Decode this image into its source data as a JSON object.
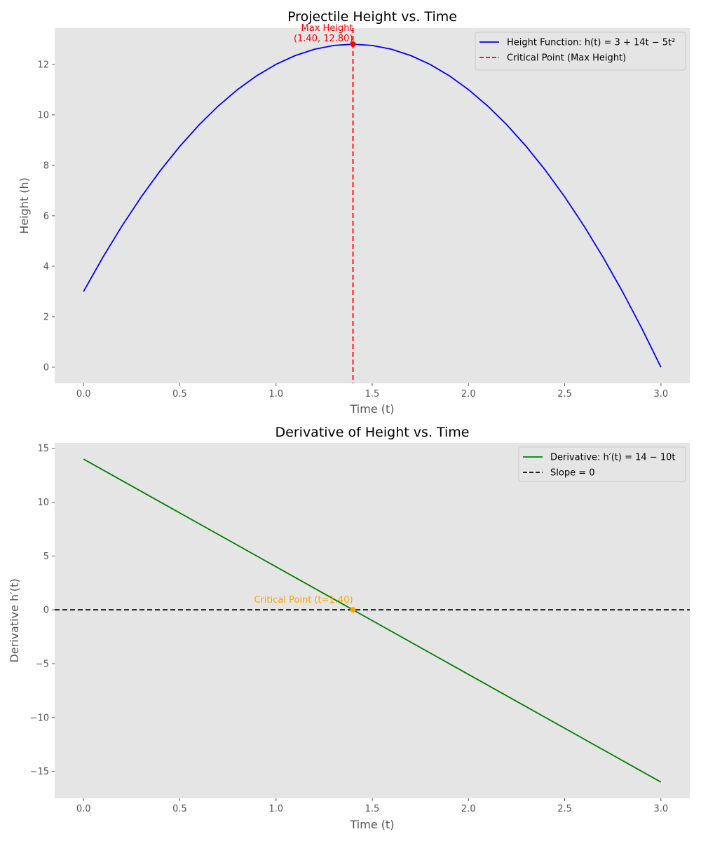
{
  "chart_data": [
    {
      "type": "line",
      "title": "Projectile Height vs. Time",
      "xlabel": "Time (t)",
      "ylabel": "Height (h)",
      "xlim": [
        -0.15,
        3.15
      ],
      "ylim": [
        -0.64,
        13.44
      ],
      "xticks": [
        0.0,
        0.5,
        1.0,
        1.5,
        2.0,
        2.5,
        3.0
      ],
      "xtick_labels": [
        "0.0",
        "0.5",
        "1.0",
        "1.5",
        "2.0",
        "2.5",
        "3.0"
      ],
      "yticks": [
        0,
        2,
        4,
        6,
        8,
        10,
        12
      ],
      "ytick_labels": [
        "0",
        "2",
        "4",
        "6",
        "8",
        "10",
        "12"
      ],
      "grid": false,
      "legend_position": "top-right",
      "background": "#e5e5e5",
      "series": [
        {
          "name": "Height Function: h(t) = 3 + 14t − 5t²",
          "color": "#0000ff",
          "style": "solid",
          "x": [
            0.0,
            0.1,
            0.2,
            0.3,
            0.4,
            0.5,
            0.6,
            0.7,
            0.8,
            0.9,
            1.0,
            1.1,
            1.2,
            1.3,
            1.4,
            1.5,
            1.6,
            1.7,
            1.8,
            1.9,
            2.0,
            2.1,
            2.2,
            2.3,
            2.4,
            2.5,
            2.6,
            2.7,
            2.8,
            2.9,
            3.0
          ],
          "y": [
            3.0,
            4.35,
            5.6,
            6.75,
            7.8,
            8.75,
            9.6,
            10.35,
            11.0,
            11.55,
            12.0,
            12.35,
            12.6,
            12.75,
            12.8,
            12.75,
            12.6,
            12.35,
            12.0,
            11.55,
            11.0,
            10.35,
            9.6,
            8.75,
            7.8,
            6.75,
            5.6,
            4.35,
            3.0,
            1.55,
            0.0
          ]
        },
        {
          "name": "Critical Point (Max Height)",
          "color": "#ff0000",
          "style": "dashed",
          "vline_x": 1.4
        }
      ],
      "points": [
        {
          "x": 1.4,
          "y": 12.8,
          "color": "#ff0000"
        }
      ],
      "annotations": [
        {
          "line1": "Max Height",
          "line2": "(1.40, 12.80)",
          "x": 1.4,
          "y": 12.8,
          "color": "#ff0000"
        }
      ]
    },
    {
      "type": "line",
      "title": "Derivative of Height vs. Time",
      "xlabel": "Time (t)",
      "ylabel": "Derivative h′(t)",
      "xlim": [
        -0.15,
        3.15
      ],
      "ylim": [
        -17.5,
        15.5
      ],
      "xticks": [
        0.0,
        0.5,
        1.0,
        1.5,
        2.0,
        2.5,
        3.0
      ],
      "xtick_labels": [
        "0.0",
        "0.5",
        "1.0",
        "1.5",
        "2.0",
        "2.5",
        "3.0"
      ],
      "yticks": [
        15,
        10,
        5,
        0,
        -5,
        -10,
        -15
      ],
      "ytick_labels": [
        "15",
        "10",
        "5",
        "0",
        "−5",
        "−10",
        "−15"
      ],
      "grid": false,
      "legend_position": "top-right",
      "background": "#e5e5e5",
      "series": [
        {
          "name": "Derivative: h′(t) = 14 − 10t",
          "color": "#008000",
          "style": "solid",
          "x": [
            0.0,
            3.0
          ],
          "y": [
            14.0,
            -16.0
          ]
        },
        {
          "name": "Slope = 0",
          "color": "#000000",
          "style": "dashed",
          "hline_y": 0
        }
      ],
      "points": [
        {
          "x": 1.4,
          "y": 0,
          "color": "#ffa500"
        }
      ],
      "annotations": [
        {
          "line1": "Critical Point (t=1.40)",
          "x": 1.4,
          "y": 0,
          "color": "#ffa500"
        }
      ]
    }
  ]
}
